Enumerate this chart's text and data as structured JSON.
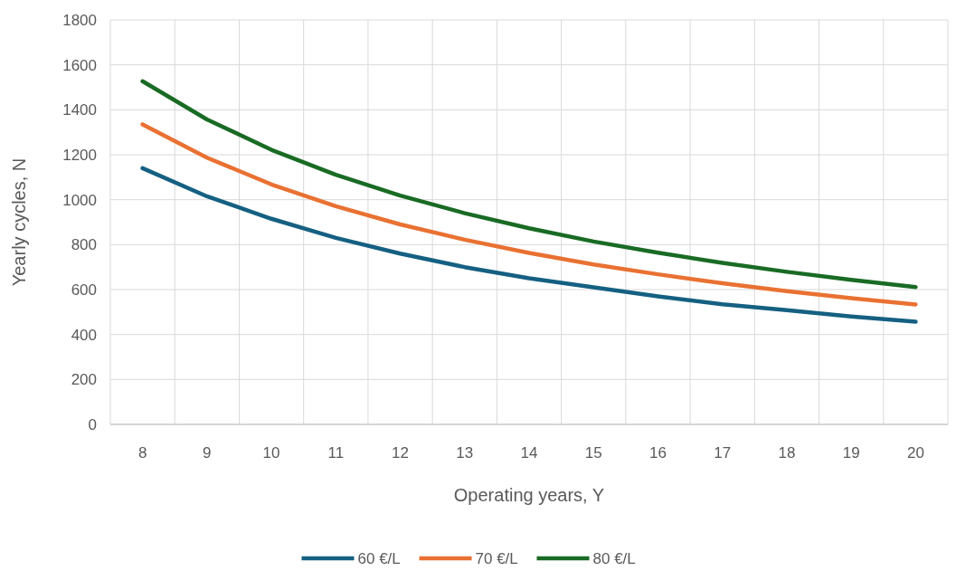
{
  "chart_data": {
    "type": "line",
    "xlabel": "Operating years, Y",
    "ylabel": "Yearly cycles, N",
    "categories": [
      "8",
      "9",
      "10",
      "11",
      "12",
      "13",
      "14",
      "15",
      "16",
      "17",
      "18",
      "19",
      "20"
    ],
    "series": [
      {
        "name": "60 €/L",
        "color": "#156082",
        "values": [
          1140,
          1015,
          915,
          830,
          760,
          700,
          650,
          610,
          570,
          535,
          508,
          480,
          457
        ]
      },
      {
        "name": "70 €/L",
        "color": "#e97132",
        "values": [
          1335,
          1187,
          1068,
          971,
          890,
          822,
          763,
          712,
          668,
          628,
          593,
          562,
          534
        ]
      },
      {
        "name": "80 €/L",
        "color": "#196b24",
        "values": [
          1527,
          1357,
          1222,
          1111,
          1018,
          940,
          873,
          814,
          764,
          719,
          679,
          643,
          611
        ]
      }
    ],
    "ylim": [
      0,
      1800
    ],
    "yticks": [
      0,
      200,
      400,
      600,
      800,
      1000,
      1200,
      1400,
      1600,
      1800
    ],
    "grid": true,
    "legend": "bottom",
    "marker": "none",
    "line_style": "solid"
  }
}
